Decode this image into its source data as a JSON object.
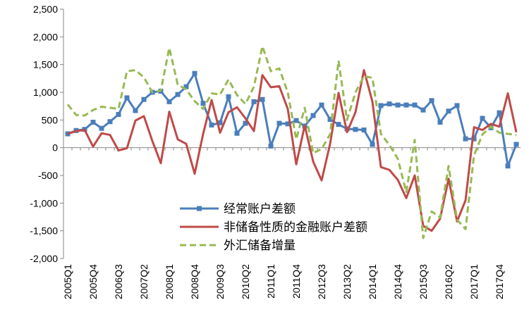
{
  "chart_data": {
    "type": "line",
    "categories": [
      "2005Q1",
      null,
      null,
      "2005Q4",
      null,
      null,
      "2006Q3",
      null,
      null,
      "2007Q2",
      null,
      null,
      "2008Q1",
      null,
      null,
      "2008Q4",
      null,
      null,
      "2009Q3",
      null,
      null,
      "2010Q2",
      null,
      null,
      "2011Q1",
      null,
      null,
      "2011Q4",
      null,
      null,
      "2012Q3",
      null,
      null,
      "2013Q2",
      null,
      null,
      "2014Q1",
      null,
      null,
      "2014Q4",
      null,
      null,
      "2015Q3",
      null,
      null,
      "2016Q2",
      null,
      null,
      "2017Q1",
      null,
      null,
      "2017Q4",
      null,
      null
    ],
    "series": [
      {
        "name": "经常账户差额",
        "color": "#4a7ebb",
        "marker": "square",
        "dash": false,
        "values": [
          250,
          310,
          330,
          460,
          350,
          470,
          600,
          900,
          670,
          870,
          1000,
          1020,
          830,
          960,
          1100,
          1340,
          800,
          410,
          450,
          920,
          260,
          440,
          830,
          870,
          30,
          440,
          430,
          490,
          390,
          580,
          770,
          510,
          420,
          340,
          330,
          320,
          60,
          760,
          790,
          770,
          770,
          770,
          680,
          850,
          460,
          660,
          760,
          160,
          160,
          530,
          360,
          630,
          -330,
          60
        ]
      },
      {
        "name": "非储备性质的金融账户差额",
        "color": "#be4b48",
        "marker": null,
        "dash": false,
        "values": [
          250,
          300,
          320,
          20,
          260,
          230,
          -50,
          -10,
          490,
          570,
          120,
          -280,
          650,
          150,
          70,
          -470,
          250,
          860,
          270,
          640,
          730,
          530,
          300,
          1310,
          1090,
          1110,
          700,
          -300,
          400,
          -250,
          -590,
          70,
          990,
          280,
          640,
          1400,
          830,
          -350,
          -400,
          -580,
          -910,
          -500,
          -1410,
          -1500,
          -1280,
          -560,
          -1330,
          -950,
          370,
          320,
          430,
          380,
          980,
          280
        ]
      },
      {
        "name": "外汇储备增量",
        "color": "#98b954",
        "marker": null,
        "dash": true,
        "values": [
          780,
          590,
          580,
          680,
          740,
          720,
          700,
          1380,
          1400,
          1270,
          1000,
          1030,
          1800,
          1140,
          1050,
          840,
          700,
          980,
          960,
          1230,
          950,
          790,
          1100,
          1830,
          1380,
          1430,
          1000,
          150,
          720,
          -100,
          -20,
          240,
          1570,
          500,
          1000,
          1290,
          1260,
          250,
          50,
          -200,
          -800,
          140,
          -1630,
          -1150,
          -1260,
          -330,
          -1300,
          -1470,
          -140,
          240,
          380,
          270,
          250,
          230
        ]
      }
    ],
    "ylim": [
      -2000,
      2500
    ],
    "yticks": [
      {
        "value": -2000,
        "label": "-2,000"
      },
      {
        "value": -1500,
        "label": "-1,500"
      },
      {
        "value": -1000,
        "label": "-1,000"
      },
      {
        "value": -500,
        "label": "-500"
      },
      0,
      500,
      {
        "value": 1000,
        "label": "1,000"
      },
      {
        "value": 1500,
        "label": "1,500"
      },
      {
        "value": 2000,
        "label": "2,000"
      },
      {
        "value": 2500,
        "label": "2,500"
      }
    ],
    "grid": false,
    "legend": "lower center"
  }
}
